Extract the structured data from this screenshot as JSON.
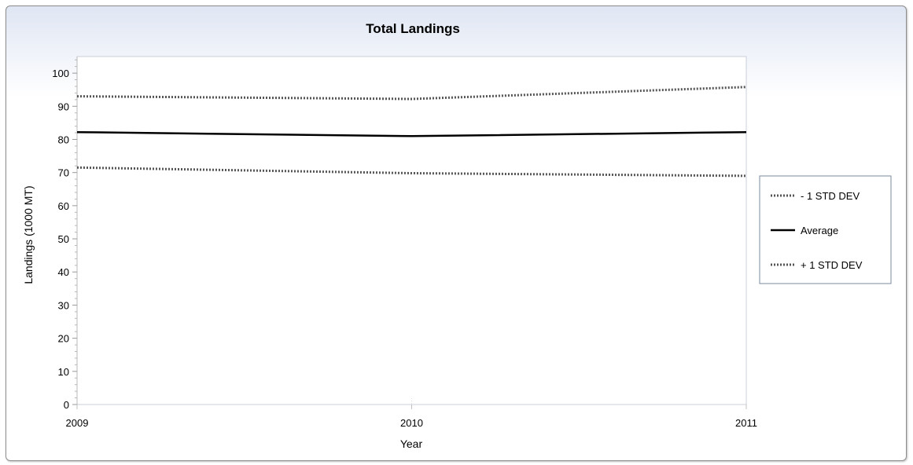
{
  "chart_data": {
    "type": "line",
    "title": "Total Landings",
    "xlabel": "Year",
    "ylabel": "Landings (1000 MT)",
    "x": [
      2009,
      2010,
      2011
    ],
    "xlim": [
      2009,
      2011
    ],
    "ylim": [
      0,
      105
    ],
    "yticks": [
      0,
      10,
      20,
      30,
      40,
      50,
      60,
      70,
      80,
      90,
      100
    ],
    "xticks": [
      "2009",
      "2010",
      "2011"
    ],
    "grid": false,
    "legend_position": "right",
    "series": [
      {
        "name": "- 1 STD DEV",
        "values": [
          71.5,
          69.8,
          69.0
        ],
        "style": "dotted",
        "color": "#555555"
      },
      {
        "name": "Average",
        "values": [
          82.2,
          81.0,
          82.2
        ],
        "style": "solid",
        "color": "#000000"
      },
      {
        "name": "+ 1 STD DEV",
        "values": [
          93.0,
          92.2,
          95.8
        ],
        "style": "dotted",
        "color": "#555555"
      }
    ]
  }
}
